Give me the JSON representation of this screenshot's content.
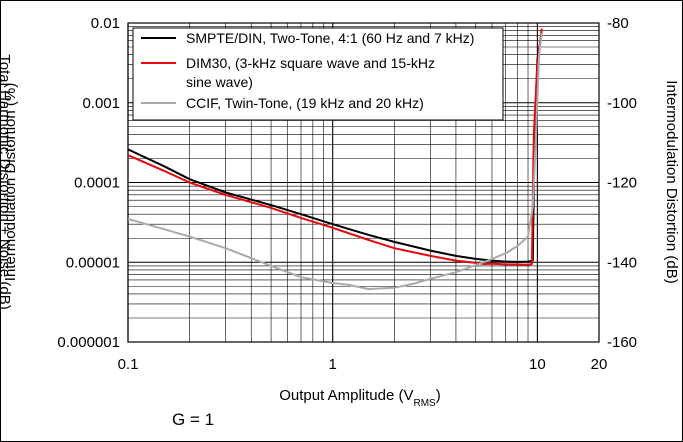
{
  "chart_data": {
    "type": "line",
    "title": "",
    "xlabel": "Output Amplitude (V",
    "xlabel_sub": "RMS",
    "xlabel_end": ")",
    "ylabel_left": "Intermodulation Distortion (%)",
    "ylabel_left_behind": "Total Harmonic Distortion + Noise (dB)",
    "ylabel_right": "Intermodulation Distortion (dB)",
    "x_scale": "log",
    "y_scale": "log",
    "xlim": [
      0.1,
      20
    ],
    "ylim_left": [
      1e-06,
      0.01
    ],
    "ylim_right": [
      -160,
      -80
    ],
    "x_ticks": [
      {
        "value": 0.1,
        "label": "0.1"
      },
      {
        "value": 1,
        "label": "1"
      },
      {
        "value": 10,
        "label": "10"
      },
      {
        "value": 20,
        "label": "20"
      }
    ],
    "y_ticks_left": [
      {
        "value": 0.01,
        "label": "0.01"
      },
      {
        "value": 0.001,
        "label": "0.001"
      },
      {
        "value": 0.0001,
        "label": "0.0001"
      },
      {
        "value": 1e-05,
        "label": "0.00001"
      },
      {
        "value": 1e-06,
        "label": "0.000001"
      }
    ],
    "y_ticks_right": [
      {
        "value": -80,
        "label": "-80"
      },
      {
        "value": -100,
        "label": "-100"
      },
      {
        "value": -120,
        "label": "-120"
      },
      {
        "value": -140,
        "label": "-140"
      },
      {
        "value": -160,
        "label": "-160"
      }
    ],
    "grid": true,
    "legend_position": "top-left",
    "series": [
      {
        "name": "SMPTE/DIN, Two-Tone, 4:1 (60 Hz and 7 kHz)",
        "color": "#000000",
        "points": [
          [
            0.1,
            0.00026
          ],
          [
            0.15,
            0.00016
          ],
          [
            0.2,
            0.00011
          ],
          [
            0.3,
            7.5e-05
          ],
          [
            0.5,
            5.2e-05
          ],
          [
            0.7,
            4e-05
          ],
          [
            1,
            3e-05
          ],
          [
            1.5,
            2.2e-05
          ],
          [
            2,
            1.8e-05
          ],
          [
            3,
            1.4e-05
          ],
          [
            4,
            1.2e-05
          ],
          [
            5,
            1.1e-05
          ],
          [
            6,
            1.05e-05
          ],
          [
            7,
            1.02e-05
          ],
          [
            8,
            1.01e-05
          ],
          [
            9,
            1.02e-05
          ],
          [
            9.5,
            1.05e-05
          ],
          [
            9.7,
            0.0005
          ],
          [
            10,
            0.0035
          ],
          [
            10.5,
            0.0075
          ]
        ]
      },
      {
        "name": "DIM30, (3-kHz square wave and 15-kHz sine wave)",
        "color": "#e8070e",
        "points": [
          [
            0.1,
            0.00022
          ],
          [
            0.15,
            0.00014
          ],
          [
            0.2,
            0.0001
          ],
          [
            0.3,
            7e-05
          ],
          [
            0.5,
            4.8e-05
          ],
          [
            0.7,
            3.6e-05
          ],
          [
            1,
            2.7e-05
          ],
          [
            1.5,
            1.9e-05
          ],
          [
            2,
            1.5e-05
          ],
          [
            3,
            1.2e-05
          ],
          [
            4,
            1.05e-05
          ],
          [
            5,
            9.8e-06
          ],
          [
            5.5,
            9.5e-06
          ],
          [
            6,
            9.6e-06
          ],
          [
            7,
            9.4e-06
          ],
          [
            8,
            9.4e-06
          ],
          [
            9,
            9.3e-06
          ],
          [
            9.4,
            9.5e-06
          ],
          [
            9.6,
            0.0004
          ],
          [
            10,
            0.003
          ],
          [
            10.5,
            0.0085
          ]
        ]
      },
      {
        "name": "CCIF, Twin-Tone, (19 kHz and 20 kHz)",
        "color": "#aaaaaa",
        "points": [
          [
            0.1,
            3.5e-05
          ],
          [
            0.15,
            2.6e-05
          ],
          [
            0.2,
            2.1e-05
          ],
          [
            0.3,
            1.5e-05
          ],
          [
            0.5,
            9e-06
          ],
          [
            0.7,
            6.5e-06
          ],
          [
            1,
            5.5e-06
          ],
          [
            1.2,
            5.2e-06
          ],
          [
            1.5,
            4.6e-06
          ],
          [
            2,
            4.8e-06
          ],
          [
            2.5,
            5.4e-06
          ],
          [
            3,
            6.2e-06
          ],
          [
            4,
            7.5e-06
          ],
          [
            5,
            9.2e-06
          ],
          [
            6,
            1.1e-05
          ],
          [
            7,
            1.3e-05
          ],
          [
            8,
            1.6e-05
          ],
          [
            9,
            2.1e-05
          ],
          [
            9.5,
            5e-05
          ],
          [
            9.8,
            0.0003
          ],
          [
            10.2,
            0.004
          ],
          [
            10.5,
            0.0075
          ]
        ]
      }
    ],
    "legend_lines": [
      [
        "SMPTE/DIN, Two-Tone, 4:1 (60 Hz and 7 kHz)"
      ],
      [
        "DIM30, (3-kHz square wave and 15-kHz",
        "sine wave)"
      ],
      [
        "CCIF, Twin-Tone, (19 kHz and 20 kHz)"
      ]
    ]
  },
  "annotation": "G = 1"
}
